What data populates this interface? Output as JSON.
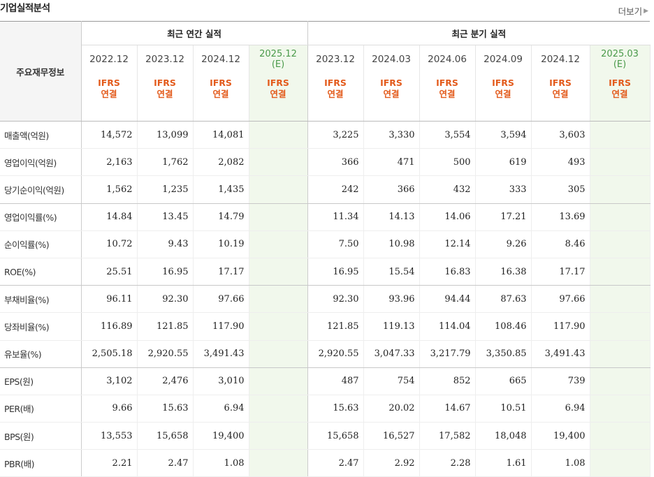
{
  "section_title": "기업실적분석",
  "more_label": "더보기",
  "header": {
    "row_title": "주요재무정보",
    "annual_group": "최근 연간 실적",
    "quarter_group": "최근 분기 실적",
    "annual_periods": [
      "2022.12",
      "2023.12",
      "2024.12",
      "2025.12"
    ],
    "annual_est_mark": "(E)",
    "quarter_periods": [
      "2023.12",
      "2024.03",
      "2024.06",
      "2024.09",
      "2024.12",
      "2025.03"
    ],
    "quarter_est_mark": "(E)",
    "basis_line1": "IFRS",
    "basis_line2": "연결"
  },
  "rows": [
    {
      "label": "매출액(억원)",
      "annual": [
        "14,572",
        "13,099",
        "14,081",
        ""
      ],
      "quarter": [
        "3,225",
        "3,330",
        "3,554",
        "3,594",
        "3,603",
        ""
      ]
    },
    {
      "label": "영업이익(억원)",
      "annual": [
        "2,163",
        "1,762",
        "2,082",
        ""
      ],
      "quarter": [
        "366",
        "471",
        "500",
        "619",
        "493",
        ""
      ]
    },
    {
      "label": "당기순이익(억원)",
      "annual": [
        "1,562",
        "1,235",
        "1,435",
        ""
      ],
      "quarter": [
        "242",
        "366",
        "432",
        "333",
        "305",
        ""
      ]
    },
    {
      "label": "영업이익률(%)",
      "annual": [
        "14.84",
        "13.45",
        "14.79",
        ""
      ],
      "quarter": [
        "11.34",
        "14.13",
        "14.06",
        "17.21",
        "13.69",
        ""
      ]
    },
    {
      "label": "순이익률(%)",
      "annual": [
        "10.72",
        "9.43",
        "10.19",
        ""
      ],
      "quarter": [
        "7.50",
        "10.98",
        "12.14",
        "9.26",
        "8.46",
        ""
      ]
    },
    {
      "label": "ROE(%)",
      "annual": [
        "25.51",
        "16.95",
        "17.17",
        ""
      ],
      "quarter": [
        "16.95",
        "15.54",
        "16.83",
        "16.38",
        "17.17",
        ""
      ]
    },
    {
      "label": "부채비율(%)",
      "annual": [
        "96.11",
        "92.30",
        "97.66",
        ""
      ],
      "quarter": [
        "92.30",
        "93.96",
        "94.44",
        "87.63",
        "97.66",
        ""
      ]
    },
    {
      "label": "당좌비율(%)",
      "annual": [
        "116.89",
        "121.85",
        "117.90",
        ""
      ],
      "quarter": [
        "121.85",
        "119.13",
        "114.04",
        "108.46",
        "117.90",
        ""
      ]
    },
    {
      "label": "유보율(%)",
      "annual": [
        "2,505.18",
        "2,920.55",
        "3,491.43",
        ""
      ],
      "quarter": [
        "2,920.55",
        "3,047.33",
        "3,217.79",
        "3,350.85",
        "3,491.43",
        ""
      ]
    },
    {
      "label": "EPS(원)",
      "annual": [
        "3,102",
        "2,476",
        "3,010",
        ""
      ],
      "quarter": [
        "487",
        "754",
        "852",
        "665",
        "739",
        ""
      ]
    },
    {
      "label": "PER(배)",
      "annual": [
        "9.66",
        "15.63",
        "6.94",
        ""
      ],
      "quarter": [
        "15.63",
        "20.02",
        "14.67",
        "10.51",
        "6.94",
        ""
      ]
    },
    {
      "label": "BPS(원)",
      "annual": [
        "13,553",
        "15,658",
        "19,400",
        ""
      ],
      "quarter": [
        "15,658",
        "16,527",
        "17,582",
        "18,048",
        "19,400",
        ""
      ]
    },
    {
      "label": "PBR(배)",
      "annual": [
        "2.21",
        "2.47",
        "1.08",
        ""
      ],
      "quarter": [
        "2.47",
        "2.92",
        "2.28",
        "1.61",
        "1.08",
        ""
      ]
    }
  ]
}
